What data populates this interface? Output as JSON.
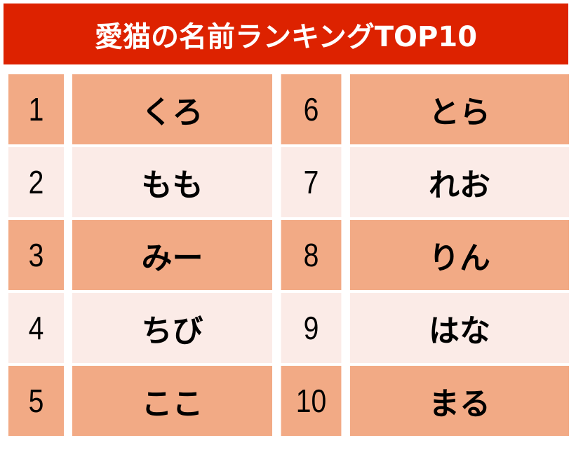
{
  "title": "愛猫の名前ランキングTOP10",
  "colors": {
    "title_bg": "#dd2200",
    "row_odd": "#f2aa85",
    "row_even": "#fbebe7"
  },
  "rankings": [
    {
      "rank": "1",
      "name": "くろ"
    },
    {
      "rank": "2",
      "name": "もも"
    },
    {
      "rank": "3",
      "name": "みー"
    },
    {
      "rank": "4",
      "name": "ちび"
    },
    {
      "rank": "5",
      "name": "ここ"
    },
    {
      "rank": "6",
      "name": "とら"
    },
    {
      "rank": "7",
      "name": "れお"
    },
    {
      "rank": "8",
      "name": "りん"
    },
    {
      "rank": "9",
      "name": "はな"
    },
    {
      "rank": "10",
      "name": "まる"
    }
  ]
}
